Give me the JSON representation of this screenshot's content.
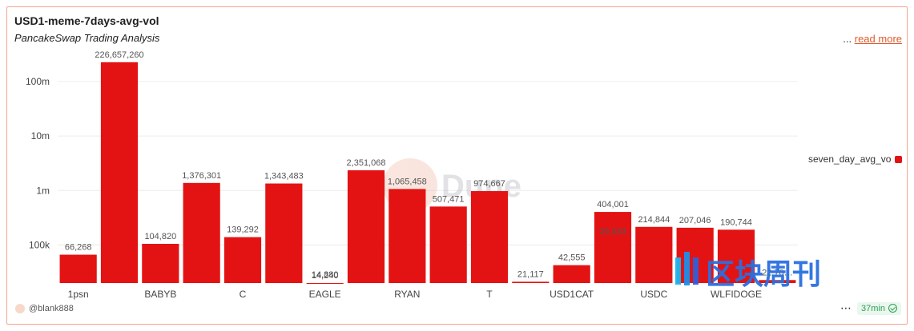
{
  "header": {
    "title": "USD1-meme-7days-avg-vol",
    "subtitle": "PancakeSwap Trading Analysis",
    "ellipsis": "...",
    "read_more": "read more"
  },
  "legend": {
    "label": "seven_day_avg_vol",
    "color": "#e31313"
  },
  "footer": {
    "author": "@blank888",
    "refresh": "37min",
    "more": "⋯"
  },
  "watermarks": {
    "dune": "Dune",
    "cn_brand": "区块周刊"
  },
  "chart_data": {
    "type": "bar",
    "y_scale": "log",
    "ylim": [
      20000,
      400000000
    ],
    "y_ticks": [
      {
        "value": 100000,
        "label": "100k"
      },
      {
        "value": 1000000,
        "label": "1m"
      },
      {
        "value": 10000000,
        "label": "10m"
      },
      {
        "value": 100000000,
        "label": "100m"
      }
    ],
    "grid": true,
    "legend_position": "right",
    "bar_color": "#e31313",
    "categories": [
      "1psn",
      "",
      "BABYB",
      "",
      "C",
      "",
      "EAGLE",
      "",
      "RYAN",
      "",
      "T",
      "",
      "USD1CAT",
      "",
      "USDC",
      "",
      "WLFIDOGE",
      ""
    ],
    "series": [
      {
        "name": "seven_day_avg_vol",
        "values": [
          66268,
          226657260,
          104820,
          1376301,
          139292,
          1343483,
          14240,
          2351068,
          1065458,
          507471,
          974667,
          21117,
          42555,
          404001,
          214844,
          207046,
          190744,
          22700
        ]
      }
    ],
    "data_labels": [
      "66,268",
      "226,657,260",
      "104,820",
      "1,376,301",
      "139,292",
      "1,343,483",
      "14,240",
      "2,351,068",
      "1,065,458",
      "507,471",
      "974,667",
      "21,117",
      "42,555",
      "404,001",
      "214,844",
      "207,046",
      "190,744",
      "22,70…"
    ],
    "extra_labels": [
      {
        "bar_index": 6,
        "label": "14,880"
      },
      {
        "bar_index": 13,
        "label": "29,033"
      }
    ]
  }
}
